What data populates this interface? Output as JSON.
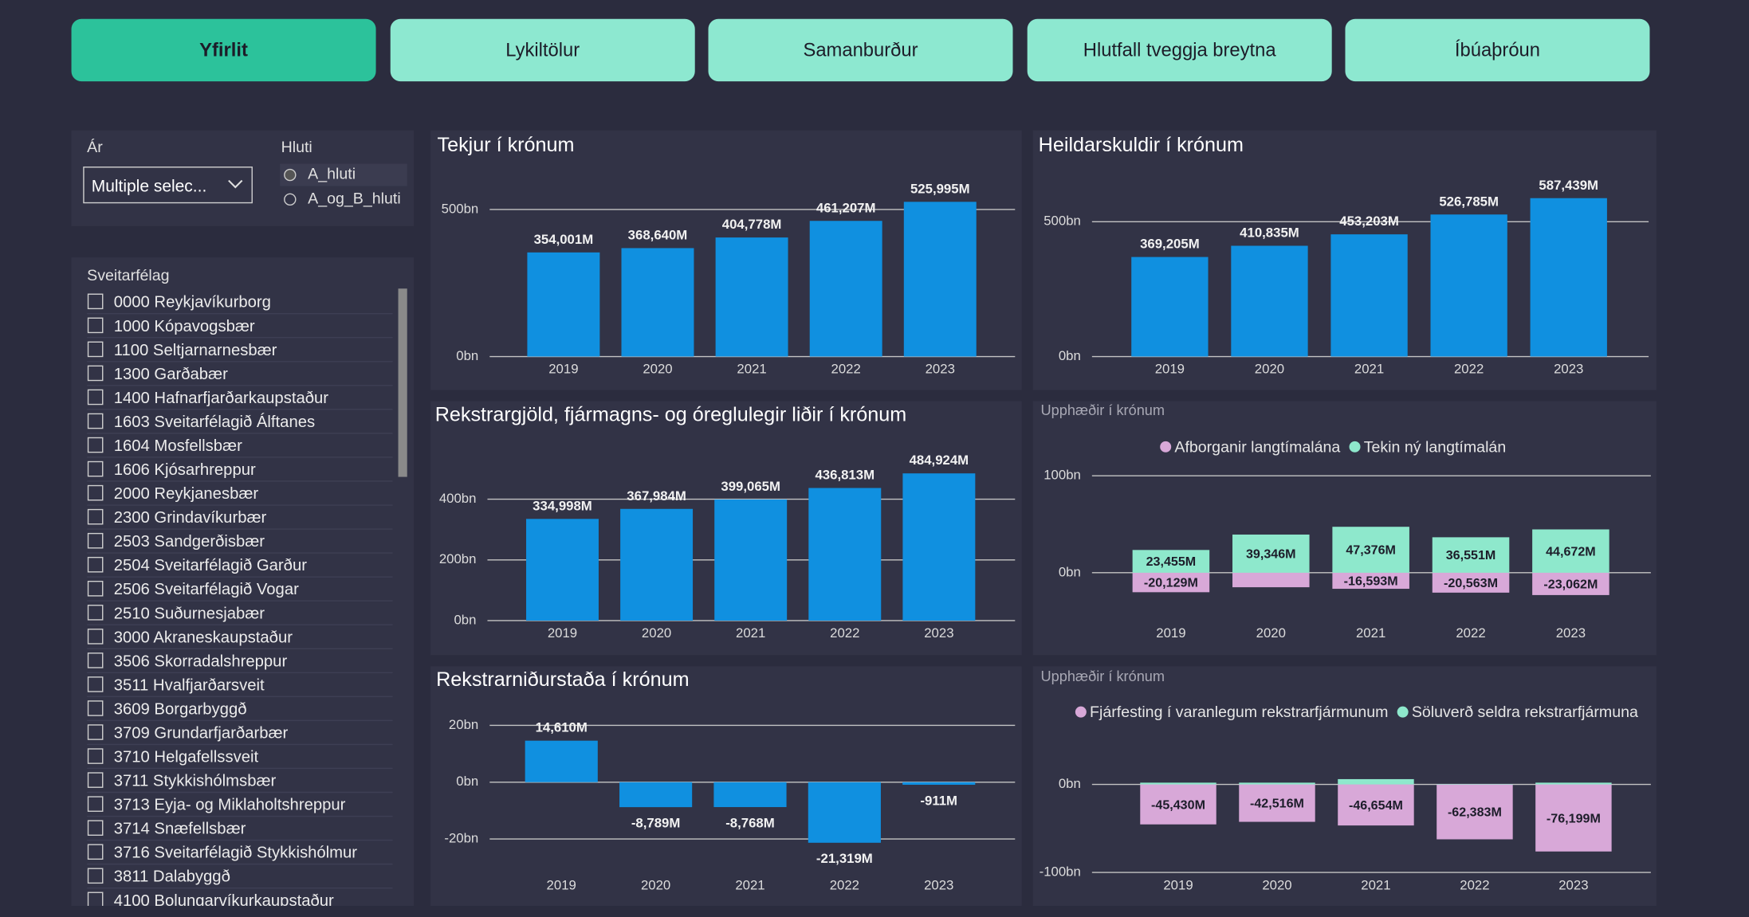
{
  "tabs": [
    {
      "label": "Yfirlit",
      "active": true
    },
    {
      "label": "Lykiltölur",
      "active": false
    },
    {
      "label": "Samanburður",
      "active": false
    },
    {
      "label": "Hlutfall tveggja breytna",
      "active": false
    },
    {
      "label": "Íbúaþróun",
      "active": false
    }
  ],
  "slicers": {
    "year": {
      "label": "Ár",
      "value": "Multiple selec..."
    },
    "part": {
      "label": "Hluti",
      "options": [
        "A_hluti",
        "A_og_B_hluti"
      ],
      "selected": 0
    },
    "municipality": {
      "label": "Sveitarfélag",
      "items": [
        "0000 Reykjavíkurborg",
        "1000 Kópavogsbær",
        "1100 Seltjarnarnesbær",
        "1300 Garðabær",
        "1400 Hafnarfjarðarkaupstaður",
        "1603 Sveitarfélagið Álftanes",
        "1604 Mosfellsbær",
        "1606 Kjósarhreppur",
        "2000 Reykjanesbær",
        "2300 Grindavíkurbær",
        "2503 Sandgerðisbær",
        "2504 Sveitarfélagið Garður",
        "2506 Sveitarfélagið Vogar",
        "2510 Suðurnesjabær",
        "3000 Akraneskaupstaður",
        "3506 Skorradalshreppur",
        "3511 Hvalfjarðarsveit",
        "3609 Borgarbyggð",
        "3709 Grundarfjarðarbær",
        "3710 Helgafellssveit",
        "3711 Stykkishólmsbær",
        "3713 Eyja- og Miklaholtshreppur",
        "3714 Snæfellsbær",
        "3716 Sveitarfélagið Stykkishólmur",
        "3811 Dalabyggð",
        "4100 Bolungarvíkurkaupstaður"
      ]
    }
  },
  "chart_data": [
    {
      "type": "bar",
      "title": "Tekjur í krónum",
      "categories": [
        "2019",
        "2020",
        "2021",
        "2022",
        "2023"
      ],
      "values": [
        354.001,
        368.64,
        404.778,
        461.207,
        525.995
      ],
      "value_labels": [
        "354,001M",
        "368,640M",
        "404,778M",
        "461,207M",
        "525,995M"
      ],
      "color": "#1090e0",
      "ylim": [
        0,
        600
      ],
      "yticks": [
        {
          "value": 0,
          "label": "0bn"
        },
        {
          "value": 500,
          "label": "500bn"
        }
      ],
      "grid": true
    },
    {
      "type": "bar",
      "title": "Heildarskuldir í krónum",
      "categories": [
        "2019",
        "2020",
        "2021",
        "2022",
        "2023"
      ],
      "values": [
        369.205,
        410.835,
        453.203,
        526.785,
        587.439
      ],
      "value_labels": [
        "369,205M",
        "410,835M",
        "453,203M",
        "526,785M",
        "587,439M"
      ],
      "color": "#1090e0",
      "ylim": [
        0,
        700
      ],
      "yticks": [
        {
          "value": 0,
          "label": "0bn"
        },
        {
          "value": 500,
          "label": "500bn"
        }
      ],
      "grid": true
    },
    {
      "type": "bar",
      "title": "Rekstrargjöld, fjármagns- og óreglulegir liðir í krónum",
      "categories": [
        "2019",
        "2020",
        "2021",
        "2022",
        "2023"
      ],
      "values": [
        334.998,
        367.984,
        399.065,
        436.813,
        484.924
      ],
      "value_labels": [
        "334,998M",
        "367,984M",
        "399,065M",
        "436,813M",
        "484,924M"
      ],
      "color": "#1090e0",
      "ylim": [
        0,
        600
      ],
      "yticks": [
        {
          "value": 0,
          "label": "0bn"
        },
        {
          "value": 200,
          "label": "200bn"
        },
        {
          "value": 400,
          "label": "400bn"
        }
      ],
      "grid": true
    },
    {
      "type": "bar",
      "subtitle": "Upphæðir í krónum",
      "categories": [
        "2019",
        "2020",
        "2021",
        "2022",
        "2023"
      ],
      "series": [
        {
          "name": "Afborganir langtímalána",
          "color": "#d8a8d8",
          "values": [
            -20.129,
            -15,
            -16.593,
            -20.563,
            -23.062
          ],
          "value_labels": [
            "-20,129M",
            null,
            "-16,593M",
            "-20,563M",
            "-23,062M"
          ]
        },
        {
          "name": "Tekin ný langtímalán",
          "color": "#8ee8cc",
          "values": [
            23.455,
            39.346,
            47.376,
            36.551,
            44.672
          ],
          "value_labels": [
            "23,455M",
            "39,346M",
            "47,376M",
            "36,551M",
            "44,672M"
          ]
        }
      ],
      "ylim": [
        -50,
        120
      ],
      "yticks": [
        {
          "value": 0,
          "label": "0bn"
        },
        {
          "value": 100,
          "label": "100bn"
        }
      ],
      "grid": true,
      "legend": "top"
    },
    {
      "type": "bar",
      "title": "Rekstrarniðurstaða í krónum",
      "categories": [
        "2019",
        "2020",
        "2021",
        "2022",
        "2023"
      ],
      "values": [
        14.61,
        -8.789,
        -8.768,
        -21.319,
        -0.911
      ],
      "value_labels": [
        "14,610M",
        "-8,789M",
        "-8,768M",
        "-21,319M",
        "-911M"
      ],
      "color": "#1090e0",
      "ylim": [
        -25,
        25
      ],
      "yticks": [
        {
          "value": -20,
          "label": "-20bn"
        },
        {
          "value": 0,
          "label": "0bn"
        },
        {
          "value": 20,
          "label": "20bn"
        }
      ],
      "grid": true
    },
    {
      "type": "bar",
      "subtitle": "Upphæðir í krónum",
      "categories": [
        "2019",
        "2020",
        "2021",
        "2022",
        "2023"
      ],
      "series": [
        {
          "name": "Fjárfesting í varanlegum rekstrarfjármunum",
          "color": "#d8a8d8",
          "values": [
            -45.43,
            -42.516,
            -46.654,
            -62.383,
            -76.199
          ],
          "value_labels": [
            "-45,430M",
            "-42,516M",
            "-46,654M",
            "-62,383M",
            "-76,199M"
          ]
        },
        {
          "name": "Söluverð seldra rekstrarfjármuna",
          "color": "#8ee8cc",
          "values": [
            2,
            2,
            6,
            0.5,
            2
          ]
        }
      ],
      "ylim": [
        -100,
        50
      ],
      "yticks": [
        {
          "value": -100,
          "label": "-100bn"
        },
        {
          "value": 0,
          "label": "0bn"
        }
      ],
      "grid": true,
      "legend": "top"
    }
  ]
}
